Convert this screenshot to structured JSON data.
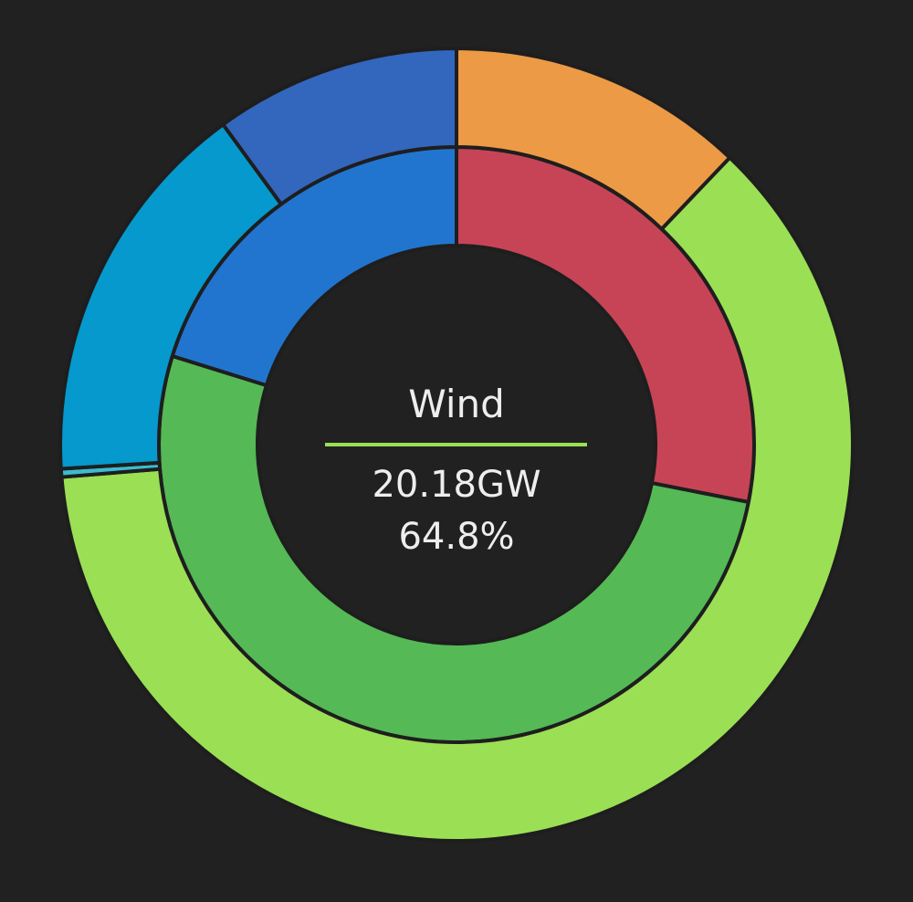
{
  "chart_data": {
    "type": "pie",
    "rings": [
      {
        "name": "",
        "slices": [
          {
            "value": 35.2,
            "color": "#c74457"
          },
          {
            "value": 64.8,
            "color": "#55b955"
          },
          {
            "value": 25.3,
            "color": "#2275cf"
          }
        ]
      },
      {
        "name": "",
        "slices": [
          {
            "value": 43.6,
            "color": "#ec9a45"
          },
          {
            "value": 221.7,
            "color": "#9bdf55"
          },
          {
            "value": 1.2,
            "color": "#3bbcd0"
          },
          {
            "value": 57.4,
            "color": "#0599cd"
          },
          {
            "value": 36.1,
            "color": "#3366bd"
          }
        ]
      }
    ],
    "center": {
      "label": "Wind",
      "value": "20.18GW",
      "percent": "64.8%",
      "accent_color": "#9bdf55"
    },
    "background_color": "#212121",
    "border_color": "#1e1e1e"
  }
}
